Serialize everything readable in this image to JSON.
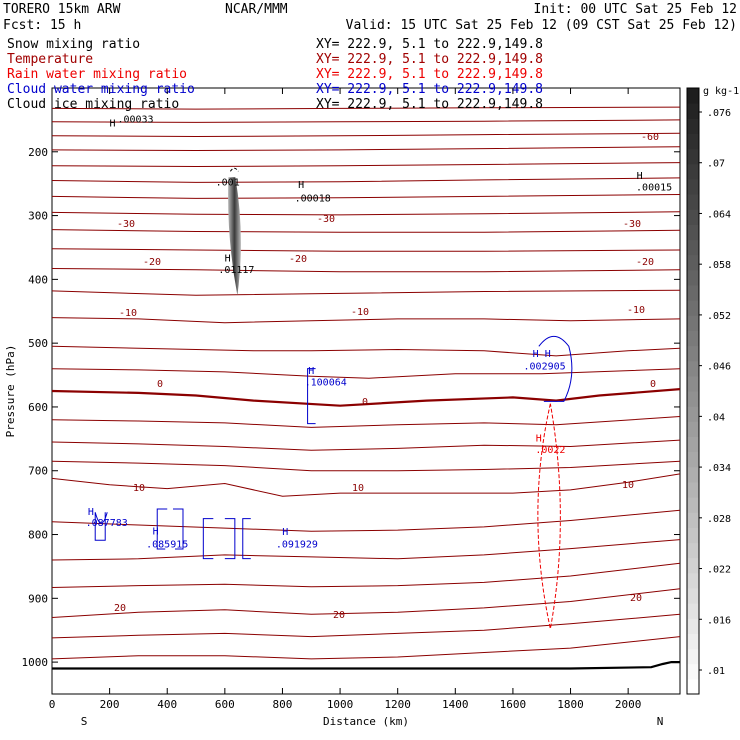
{
  "header": {
    "model": "TORERO  15km ARW",
    "org": "NCAR/MMM",
    "init": "Init: 00 UTC Sat 25 Feb 12",
    "fcst": "Fcst:   15 h",
    "valid": "Valid: 15 UTC Sat 25 Feb 12 (09 CST Sat 25 Feb 12)"
  },
  "legend": [
    {
      "name": "Snow mixing ratio",
      "xy": "XY= 222.9,  5.1 to 222.9,149.8",
      "color": "#000000"
    },
    {
      "name": "Temperature",
      "xy": "XY= 222.9,  5.1 to 222.9,149.8",
      "color": "#a00000"
    },
    {
      "name": "Rain water mixing ratio",
      "xy": "XY= 222.9,  5.1 to 222.9,149.8",
      "color": "#ee0000"
    },
    {
      "name": "Cloud water mixing ratio",
      "xy": "XY= 222.9,  5.1 to 222.9,149.8",
      "color": "#0000cc"
    },
    {
      "name": "Cloud ice mixing ratio",
      "xy": "XY= 222.9,  5.1 to 222.9,149.8",
      "color": "#000000"
    }
  ],
  "chart_data": {
    "type": "contour",
    "xlabel": "Distance (km)",
    "ylabel": "Pressure (hPa)",
    "xlim": [
      0,
      2180
    ],
    "ylim": [
      1050,
      100
    ],
    "x_ticks": [
      "0",
      "200",
      "400",
      "600",
      "800",
      "1000",
      "1200",
      "1400",
      "1600",
      "1800",
      "2000"
    ],
    "y_ticks": [
      "200",
      "300",
      "400",
      "500",
      "600",
      "700",
      "800",
      "900",
      "1000"
    ],
    "x_end_labels": {
      "left": "S",
      "right": "N"
    },
    "colorbar": {
      "unit": "g kg-1",
      "ticks": [
        ".01",
        ".016",
        ".022",
        ".028",
        ".034",
        ".04",
        ".046",
        ".052",
        ".058",
        ".064",
        ".07",
        ".076"
      ]
    },
    "temperature_labels": [
      "-60",
      "-30",
      "-30",
      "-30",
      "-20",
      "-20",
      "-20",
      "-10",
      "-10",
      "-10",
      "0",
      "0",
      "0",
      "10",
      "10",
      "10",
      "20",
      "20",
      "20"
    ],
    "temperature_isotherms": [
      {
        "value": -60,
        "points": [
          [
            0,
            132
          ],
          [
            500,
            133
          ],
          [
            1000,
            132
          ],
          [
            1500,
            131
          ],
          [
            2180,
            130
          ]
        ]
      },
      {
        "value": -60,
        "points": [
          [
            0,
            153
          ],
          [
            500,
            154
          ],
          [
            1000,
            153
          ],
          [
            1500,
            152
          ],
          [
            2180,
            150
          ]
        ]
      },
      {
        "value": -60,
        "points": [
          [
            0,
            175
          ],
          [
            500,
            176
          ],
          [
            1000,
            175
          ],
          [
            1500,
            173
          ],
          [
            2180,
            171
          ]
        ]
      },
      {
        "value": -50,
        "points": [
          [
            0,
            197
          ],
          [
            500,
            198
          ],
          [
            1000,
            197
          ],
          [
            1500,
            195
          ],
          [
            2180,
            192
          ]
        ]
      },
      {
        "value": -50,
        "points": [
          [
            0,
            222
          ],
          [
            500,
            223
          ],
          [
            1000,
            222
          ],
          [
            1500,
            220
          ],
          [
            2180,
            217
          ]
        ]
      },
      {
        "value": -40,
        "points": [
          [
            0,
            245
          ],
          [
            500,
            248
          ],
          [
            1000,
            247
          ],
          [
            1500,
            244
          ],
          [
            2180,
            241
          ]
        ]
      },
      {
        "value": -40,
        "points": [
          [
            0,
            270
          ],
          [
            500,
            273
          ],
          [
            1000,
            272
          ],
          [
            1500,
            270
          ],
          [
            2180,
            267
          ]
        ]
      },
      {
        "value": -30,
        "points": [
          [
            0,
            295
          ],
          [
            500,
            298
          ],
          [
            1000,
            299
          ],
          [
            1500,
            297
          ],
          [
            2180,
            294
          ]
        ]
      },
      {
        "value": -30,
        "points": [
          [
            0,
            322
          ],
          [
            500,
            325
          ],
          [
            1000,
            326
          ],
          [
            1500,
            326
          ],
          [
            2180,
            323
          ]
        ]
      },
      {
        "value": -20,
        "points": [
          [
            0,
            352
          ],
          [
            500,
            354
          ],
          [
            1000,
            356
          ],
          [
            1500,
            356
          ],
          [
            2180,
            354
          ]
        ]
      },
      {
        "value": -20,
        "points": [
          [
            0,
            383
          ],
          [
            500,
            385
          ],
          [
            1000,
            388
          ],
          [
            1500,
            388
          ],
          [
            2180,
            385
          ]
        ]
      },
      {
        "value": -10,
        "points": [
          [
            0,
            418
          ],
          [
            500,
            425
          ],
          [
            1000,
            422
          ],
          [
            1500,
            419
          ],
          [
            2180,
            417
          ]
        ]
      },
      {
        "value": -10,
        "points": [
          [
            0,
            460
          ],
          [
            300,
            462
          ],
          [
            600,
            468
          ],
          [
            900,
            465
          ],
          [
            1200,
            462
          ],
          [
            1500,
            462
          ],
          [
            1800,
            465
          ],
          [
            2180,
            462
          ]
        ]
      },
      {
        "value": -10,
        "points": [
          [
            0,
            505
          ],
          [
            300,
            508
          ],
          [
            700,
            512
          ],
          [
            900,
            512
          ],
          [
            1200,
            510
          ],
          [
            1500,
            512
          ],
          [
            1750,
            520
          ],
          [
            2000,
            512
          ],
          [
            2180,
            508
          ]
        ]
      },
      {
        "value": -5,
        "points": [
          [
            0,
            540
          ],
          [
            300,
            542
          ],
          [
            600,
            545
          ],
          [
            900,
            552
          ],
          [
            1100,
            555
          ],
          [
            1400,
            548
          ],
          [
            1700,
            548
          ],
          [
            2180,
            540
          ]
        ]
      },
      {
        "value": 0,
        "bold": true,
        "points": [
          [
            0,
            575
          ],
          [
            300,
            578
          ],
          [
            500,
            582
          ],
          [
            700,
            590
          ],
          [
            1000,
            598
          ],
          [
            1300,
            590
          ],
          [
            1600,
            585
          ],
          [
            1750,
            590
          ],
          [
            1900,
            582
          ],
          [
            2180,
            572
          ]
        ]
      },
      {
        "value": 5,
        "points": [
          [
            0,
            620
          ],
          [
            300,
            622
          ],
          [
            600,
            625
          ],
          [
            900,
            632
          ],
          [
            1200,
            628
          ],
          [
            1500,
            625
          ],
          [
            1750,
            628
          ],
          [
            2180,
            615
          ]
        ]
      },
      {
        "value": 5,
        "points": [
          [
            0,
            655
          ],
          [
            300,
            658
          ],
          [
            600,
            662
          ],
          [
            900,
            668
          ],
          [
            1200,
            665
          ],
          [
            1500,
            660
          ],
          [
            1800,
            662
          ],
          [
            2180,
            652
          ]
        ]
      },
      {
        "value": 5,
        "points": [
          [
            0,
            685
          ],
          [
            300,
            688
          ],
          [
            600,
            692
          ],
          [
            900,
            700
          ],
          [
            1200,
            700
          ],
          [
            1500,
            698
          ],
          [
            1800,
            695
          ],
          [
            2180,
            685
          ]
        ]
      },
      {
        "value": 10,
        "points": [
          [
            0,
            712
          ],
          [
            200,
            722
          ],
          [
            400,
            728
          ],
          [
            600,
            720
          ],
          [
            800,
            740
          ],
          [
            1000,
            735
          ],
          [
            1300,
            735
          ],
          [
            1600,
            735
          ],
          [
            1800,
            730
          ],
          [
            2000,
            718
          ],
          [
            2180,
            705
          ]
        ]
      },
      {
        "value": 10,
        "points": [
          [
            0,
            780
          ],
          [
            300,
            785
          ],
          [
            600,
            790
          ],
          [
            900,
            795
          ],
          [
            1200,
            793
          ],
          [
            1500,
            788
          ],
          [
            1800,
            778
          ],
          [
            2180,
            762
          ]
        ]
      },
      {
        "value": 15,
        "points": [
          [
            0,
            840
          ],
          [
            300,
            838
          ],
          [
            600,
            832
          ],
          [
            900,
            835
          ],
          [
            1200,
            838
          ],
          [
            1500,
            832
          ],
          [
            1800,
            822
          ],
          [
            2180,
            808
          ]
        ]
      },
      {
        "value": 20,
        "points": [
          [
            0,
            883
          ],
          [
            300,
            880
          ],
          [
            600,
            878
          ],
          [
            900,
            882
          ],
          [
            1200,
            880
          ],
          [
            1500,
            875
          ],
          [
            1800,
            865
          ],
          [
            2180,
            845
          ]
        ]
      },
      {
        "value": 20,
        "points": [
          [
            0,
            930
          ],
          [
            300,
            922
          ],
          [
            600,
            918
          ],
          [
            900,
            925
          ],
          [
            1200,
            922
          ],
          [
            1500,
            915
          ],
          [
            1800,
            905
          ],
          [
            2180,
            885
          ]
        ]
      },
      {
        "value": 20,
        "points": [
          [
            0,
            962
          ],
          [
            300,
            958
          ],
          [
            600,
            955
          ],
          [
            900,
            960
          ],
          [
            1200,
            955
          ],
          [
            1500,
            950
          ],
          [
            1800,
            940
          ],
          [
            2180,
            925
          ]
        ]
      },
      {
        "value": 25,
        "points": [
          [
            0,
            995
          ],
          [
            300,
            990
          ],
          [
            600,
            990
          ],
          [
            900,
            995
          ],
          [
            1200,
            992
          ],
          [
            1500,
            985
          ],
          [
            1800,
            978
          ],
          [
            2180,
            960
          ]
        ]
      }
    ],
    "terrain": {
      "points": [
        [
          0,
          1010
        ],
        [
          1000,
          1010
        ],
        [
          1800,
          1010
        ],
        [
          2080,
          1008
        ],
        [
          2120,
          1003
        ],
        [
          2150,
          1000
        ],
        [
          2180,
          1000
        ]
      ]
    },
    "snow_column": {
      "x": 640,
      "p_top": 240,
      "p_bottom": 425
    },
    "annotations": [
      {
        "text": "H",
        "x": 210,
        "y": 160,
        "color": "#000000"
      },
      {
        "text": ".00033",
        "x": 290,
        "y": 154,
        "color": "#000000"
      },
      {
        "text": ".001",
        "x": 610,
        "y": 253,
        "color": "#000000"
      },
      {
        "text": "H",
        "x": 865,
        "y": 257,
        "color": "#000000"
      },
      {
        "text": ".00018",
        "x": 905,
        "y": 278,
        "color": "#000000"
      },
      {
        "text": "H",
        "x": 2040,
        "y": 243,
        "color": "#000000"
      },
      {
        "text": ".00015",
        "x": 2090,
        "y": 261,
        "color": "#000000"
      },
      {
        "text": "H",
        "x": 610,
        "y": 372,
        "color": "#000000"
      },
      {
        "text": ".01117",
        "x": 640,
        "y": 390,
        "color": "#000000"
      },
      {
        "text": "H",
        "x": 900,
        "y": 548,
        "color": "#0000cc"
      },
      {
        "text": ".100064",
        "x": 950,
        "y": 566,
        "color": "#0000cc"
      },
      {
        "text": "H H",
        "x": 1700,
        "y": 522,
        "color": "#0000cc"
      },
      {
        "text": ".002905",
        "x": 1710,
        "y": 541,
        "color": "#0000cc"
      },
      {
        "text": "H",
        "x": 1690,
        "y": 654,
        "color": "#ee0000"
      },
      {
        "text": ".0022",
        "x": 1730,
        "y": 672,
        "color": "#ee0000"
      },
      {
        "text": "H",
        "x": 135,
        "y": 769,
        "color": "#0000cc"
      },
      {
        "text": ".087783",
        "x": 190,
        "y": 787,
        "color": "#0000cc"
      },
      {
        "text": "H",
        "x": 360,
        "y": 800,
        "color": "#0000cc"
      },
      {
        "text": ".085915",
        "x": 400,
        "y": 820,
        "color": "#0000cc"
      },
      {
        "text": "H",
        "x": 810,
        "y": 801,
        "color": "#0000cc"
      },
      {
        "text": ".091929",
        "x": 850,
        "y": 820,
        "color": "#0000cc"
      }
    ]
  }
}
